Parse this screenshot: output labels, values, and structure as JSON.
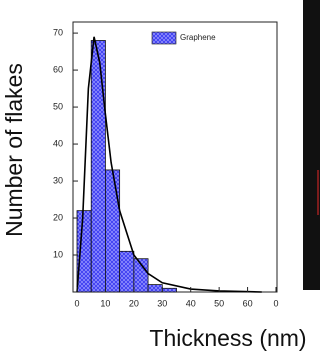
{
  "chart_data": {
    "type": "histogram",
    "x_label": "Thickness (nm)",
    "y_label": "Number of flakes",
    "bins": [
      0,
      5,
      10,
      15,
      20,
      25,
      30,
      35
    ],
    "series": [
      {
        "name": "Graphene",
        "color": "#3a3af0",
        "values": [
          22,
          68,
          33,
          11,
          9,
          2,
          1
        ]
      }
    ],
    "fit": {
      "type": "line",
      "color": "#000000",
      "x": [
        0,
        2,
        4,
        6,
        8,
        10,
        12,
        15,
        20,
        25,
        30,
        40,
        50,
        65
      ],
      "values": [
        0,
        20,
        55,
        69,
        62,
        48,
        35,
        22,
        10,
        5,
        2.5,
        0.8,
        0.3,
        0
      ]
    },
    "xlim": [
      0,
      70
    ],
    "xticks": [
      0,
      10,
      20,
      30,
      40,
      50,
      60,
      {
        "value": 70,
        "label": "0"
      }
    ],
    "ylim": [
      0,
      73
    ],
    "yticks": [
      10,
      20,
      30,
      40,
      50,
      60,
      70
    ],
    "legend": "upper right",
    "grid": false
  }
}
